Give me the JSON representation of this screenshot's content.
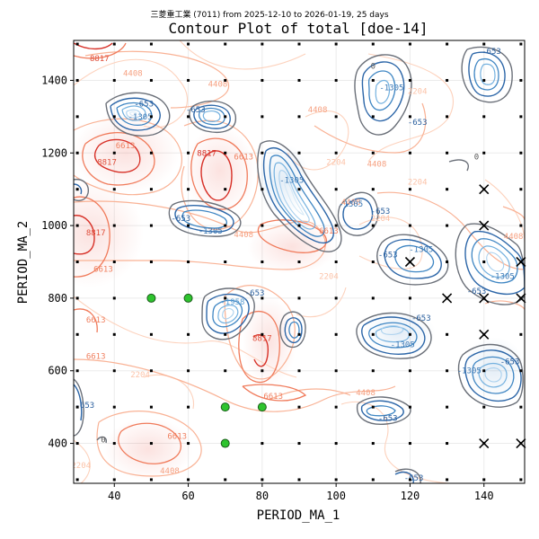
{
  "chart_data": {
    "type": "contour",
    "suptitle": "三菱重工業 (7011) from 2025-12-10 to 2026-01-19, 25 days",
    "title": "Contour Plot of total [doe-14]",
    "xlabel": "PERIOD_MA_1",
    "ylabel": "PERIOD_MA_2",
    "xlim": [
      29,
      151
    ],
    "ylim": [
      290,
      1510
    ],
    "xticks": [
      40,
      60,
      80,
      100,
      120,
      140
    ],
    "yticks": [
      400,
      600,
      800,
      1000,
      1200,
      1400
    ],
    "grid_x": [
      30,
      40,
      50,
      60,
      70,
      80,
      90,
      100,
      110,
      120,
      130,
      140,
      150
    ],
    "grid_y": [
      300,
      400,
      500,
      600,
      700,
      800,
      900,
      1000,
      1100,
      1200,
      1300,
      1400,
      1500
    ],
    "contour_level_labels": [
      {
        "text": "8817",
        "x": 35,
        "y": 980,
        "color": "#e0503c"
      },
      {
        "text": "6613",
        "x": 37,
        "y": 880,
        "color": "#f08060"
      },
      {
        "text": "6613",
        "x": 35,
        "y": 740,
        "color": "#f08060"
      },
      {
        "text": "8817",
        "x": 36,
        "y": 1460,
        "color": "#e0503c"
      },
      {
        "text": "4408",
        "x": 45,
        "y": 1420,
        "color": "#f6a080"
      },
      {
        "text": "6613",
        "x": 43,
        "y": 1220,
        "color": "#f08060"
      },
      {
        "text": "8817",
        "x": 38,
        "y": 1175,
        "color": "#e0503c"
      },
      {
        "text": "8817",
        "x": 65,
        "y": 1200,
        "color": "#d73027"
      },
      {
        "text": "6613",
        "x": 75,
        "y": 1190,
        "color": "#f08060"
      },
      {
        "text": "4408",
        "x": 68,
        "y": 1390,
        "color": "#f6a080"
      },
      {
        "text": "4408",
        "x": 75,
        "y": 975,
        "color": "#f6a080"
      },
      {
        "text": "6613",
        "x": 98,
        "y": 985,
        "color": "#f08060"
      },
      {
        "text": "4408",
        "x": 104,
        "y": 1065,
        "color": "#f6a080"
      },
      {
        "text": "2204",
        "x": 100,
        "y": 1175,
        "color": "#fcc3a8"
      },
      {
        "text": "4408",
        "x": 111,
        "y": 1170,
        "color": "#f6a080"
      },
      {
        "text": "4408",
        "x": 95,
        "y": 1320,
        "color": "#f6a080"
      },
      {
        "text": "2204",
        "x": 122,
        "y": 1370,
        "color": "#fcc3a8"
      },
      {
        "text": "2204",
        "x": 122,
        "y": 1120,
        "color": "#fcc3a8"
      },
      {
        "text": "2204",
        "x": 112,
        "y": 1020,
        "color": "#fcc3a8"
      },
      {
        "text": "6613",
        "x": 35,
        "y": 640,
        "color": "#f08060"
      },
      {
        "text": "8817",
        "x": 80,
        "y": 690,
        "color": "#e0503c"
      },
      {
        "text": "6613",
        "x": 83,
        "y": 530,
        "color": "#f08060"
      },
      {
        "text": "2204",
        "x": 98,
        "y": 860,
        "color": "#fcc3a8"
      },
      {
        "text": "2204",
        "x": 47,
        "y": 590,
        "color": "#fcc3a8"
      },
      {
        "text": "6613",
        "x": 57,
        "y": 420,
        "color": "#f08060"
      },
      {
        "text": "4408",
        "x": 55,
        "y": 325,
        "color": "#f6a080"
      },
      {
        "text": "4408",
        "x": 108,
        "y": 540,
        "color": "#f6a080"
      },
      {
        "text": "4408",
        "x": 148,
        "y": 970,
        "color": "#f6a080"
      },
      {
        "text": "2204",
        "x": 31,
        "y": 340,
        "color": "#fcc3a8"
      },
      {
        "text": "0",
        "x": 110,
        "y": 1440,
        "color": "#555555"
      },
      {
        "text": "0",
        "x": 138,
        "y": 1190,
        "color": "#555555"
      },
      {
        "text": "0",
        "x": 37,
        "y": 410,
        "color": "#555555"
      },
      {
        "text": "-653",
        "x": 142,
        "y": 1480,
        "color": "#2a5f9e"
      },
      {
        "text": "-653",
        "x": 62,
        "y": 1320,
        "color": "#2a5f9e"
      },
      {
        "text": "-653",
        "x": 48,
        "y": 1335,
        "color": "#2a5f9e"
      },
      {
        "text": "-1305",
        "x": 47,
        "y": 1300,
        "color": "#3a78b5"
      },
      {
        "text": "-1305",
        "x": 115,
        "y": 1380,
        "color": "#3a78b5"
      },
      {
        "text": "-653",
        "x": 122,
        "y": 1285,
        "color": "#2a5f9e"
      },
      {
        "text": "-1305",
        "x": 88,
        "y": 1125,
        "color": "#3a78b5"
      },
      {
        "text": "-1305",
        "x": 104,
        "y": 1060,
        "color": "#3a78b5"
      },
      {
        "text": "-653",
        "x": 112,
        "y": 1040,
        "color": "#2a5f9e"
      },
      {
        "text": "-653",
        "x": 58,
        "y": 1020,
        "color": "#2a5f9e"
      },
      {
        "text": "-1305",
        "x": 66,
        "y": 985,
        "color": "#3a78b5"
      },
      {
        "text": "-1305",
        "x": 123,
        "y": 935,
        "color": "#3a78b5"
      },
      {
        "text": "-653",
        "x": 114,
        "y": 920,
        "color": "#2a5f9e"
      },
      {
        "text": "-1305",
        "x": 145,
        "y": 860,
        "color": "#3a78b5"
      },
      {
        "text": "-653",
        "x": 138,
        "y": 820,
        "color": "#2a5f9e"
      },
      {
        "text": "-653",
        "x": 78,
        "y": 815,
        "color": "#2a5f9e"
      },
      {
        "text": "-1958",
        "x": 72,
        "y": 790,
        "color": "#5d9fd3"
      },
      {
        "text": "-653",
        "x": 123,
        "y": 745,
        "color": "#2a5f9e"
      },
      {
        "text": "-1305",
        "x": 118,
        "y": 672,
        "color": "#3a78b5"
      },
      {
        "text": "-1305",
        "x": 136,
        "y": 600,
        "color": "#3a78b5"
      },
      {
        "text": "-653",
        "x": 147,
        "y": 625,
        "color": "#2a5f9e"
      },
      {
        "text": "-653",
        "x": 114,
        "y": 470,
        "color": "#2a5f9e"
      },
      {
        "text": "-653",
        "x": 32,
        "y": 505,
        "color": "#2a5f9e"
      },
      {
        "text": "-653",
        "x": 121,
        "y": 305,
        "color": "#2a5f9e"
      }
    ],
    "markers": {
      "green_circles": [
        [
          50,
          800
        ],
        [
          60,
          800
        ],
        [
          70,
          500
        ],
        [
          80,
          500
        ],
        [
          70,
          400
        ]
      ],
      "black_x": [
        [
          140,
          1100
        ],
        [
          140,
          1000
        ],
        [
          120,
          900
        ],
        [
          150,
          900
        ],
        [
          130,
          800
        ],
        [
          140,
          800
        ],
        [
          150,
          800
        ],
        [
          140,
          700
        ],
        [
          140,
          400
        ],
        [
          150,
          400
        ]
      ]
    }
  }
}
